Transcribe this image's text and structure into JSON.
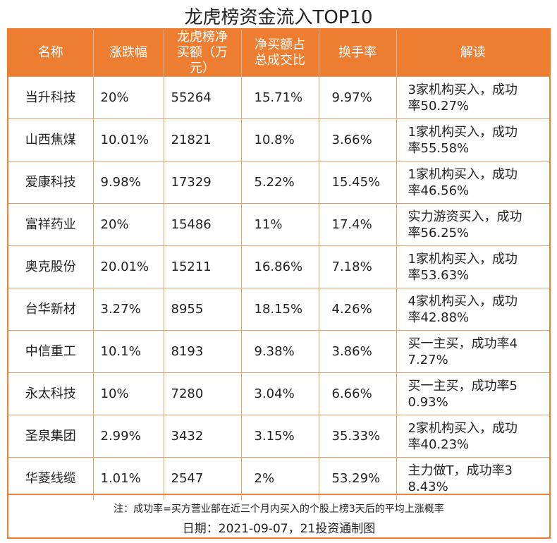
{
  "title": "龙虎榜资金流入TOP10",
  "headers": [
    "名称",
    "涨跌幅",
    "龙虎榜净买额（万元）",
    "净买额占总成交比",
    "换手率",
    "解读"
  ],
  "rows": [
    {
      "name": "当升科技",
      "change": "20%",
      "net_buy": "55264",
      "ratio": "15.71%",
      "turnover": "9.97%",
      "reading": [
        "3家机构买入，成功",
        "率50.27%"
      ]
    },
    {
      "name": "山西焦煤",
      "change": "10.01%",
      "net_buy": "21821",
      "ratio": "10.8%",
      "turnover": "3.66%",
      "reading": [
        "1家机构买入，成功",
        "率55.58%"
      ]
    },
    {
      "name": "爱康科技",
      "change": "9.98%",
      "net_buy": "17329",
      "ratio": "5.22%",
      "turnover": "15.45%",
      "reading": [
        "1家机构买入，成功",
        "率46.56%"
      ]
    },
    {
      "name": "富祥药业",
      "change": "20%",
      "net_buy": "15486",
      "ratio": "11%",
      "turnover": "17.4%",
      "reading": [
        "实力游资买入，成功",
        "率56.25%"
      ]
    },
    {
      "name": "奥克股份",
      "change": "20.01%",
      "net_buy": "15211",
      "ratio": "16.86%",
      "turnover": "7.18%",
      "reading": [
        "1家机构买入，成功",
        "率53.63%"
      ]
    },
    {
      "name": "台华新材",
      "change": "3.27%",
      "net_buy": "8955",
      "ratio": "18.15%",
      "turnover": "4.26%",
      "reading": [
        "4家机构买入，成功",
        "率42.88%"
      ]
    },
    {
      "name": "中信重工",
      "change": "10.1%",
      "net_buy": "8193",
      "ratio": "9.38%",
      "turnover": "3.86%",
      "reading": [
        "买一主买，成功率4",
        "7.27%"
      ]
    },
    {
      "name": "永太科技",
      "change": "10%",
      "net_buy": "7280",
      "ratio": "3.04%",
      "turnover": "6.66%",
      "reading": [
        "买一主买，成功率5",
        "0.93%"
      ]
    },
    {
      "name": "圣泉集团",
      "change": "2.99%",
      "net_buy": "3432",
      "ratio": "3.15%",
      "turnover": "35.33%",
      "reading": [
        "2家机构买入，成功",
        "率40.23%"
      ]
    },
    {
      "name": "华菱线缆",
      "change": "1.01%",
      "net_buy": "2547",
      "ratio": "2%",
      "turnover": "53.29%",
      "reading": [
        "主力做T，成功率3",
        "8.43%"
      ]
    }
  ],
  "note": "注：成功率=买方营业部在近三个月内买入的个股上榜3天后的平均上涨概率",
  "date": "日期：2021-09-07，21投资通制图"
}
